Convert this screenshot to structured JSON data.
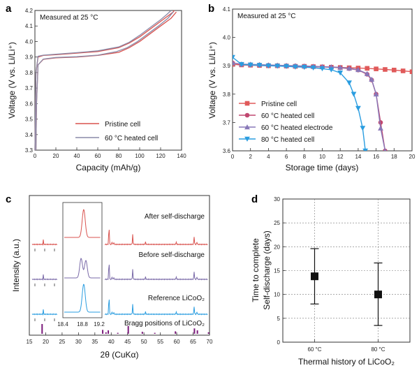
{
  "chart_data": [
    {
      "panel": "a",
      "type": "line",
      "annotation": "Measured at 25 °C",
      "xlabel": "Capacity (mAh/g)",
      "ylabel": "Voltage (V vs. Li/Li⁺)",
      "xlim": [
        0,
        140
      ],
      "ylim": [
        3.3,
        4.2
      ],
      "x_ticks": [
        "0",
        "20",
        "40",
        "60",
        "80",
        "100",
        "120",
        "140"
      ],
      "y_ticks": [
        "3.3",
        "3.4",
        "3.5",
        "3.6",
        "3.7",
        "3.8",
        "3.9",
        "4.0",
        "4.1",
        "4.2"
      ],
      "legend_position": "bottom-right",
      "series": [
        {
          "name": "Pristine cell",
          "color": "#d9534f",
          "charge": [
            [
              0,
              3.3
            ],
            [
              1,
              3.8
            ],
            [
              3,
              3.9
            ],
            [
              8,
              3.91
            ],
            [
              20,
              3.915
            ],
            [
              40,
              3.925
            ],
            [
              60,
              3.935
            ],
            [
              80,
              3.96
            ],
            [
              90,
              3.99
            ],
            [
              100,
              4.03
            ],
            [
              110,
              4.08
            ],
            [
              120,
              4.13
            ],
            [
              128,
              4.17
            ],
            [
              132,
              4.19
            ],
            [
              133,
              4.2
            ]
          ],
          "discharge": [
            [
              135,
              4.19
            ],
            [
              130,
              4.15
            ],
            [
              120,
              4.1
            ],
            [
              110,
              4.05
            ],
            [
              100,
              4.0
            ],
            [
              90,
              3.96
            ],
            [
              80,
              3.93
            ],
            [
              60,
              3.91
            ],
            [
              40,
              3.9
            ],
            [
              20,
              3.895
            ],
            [
              8,
              3.885
            ],
            [
              3,
              3.85
            ],
            [
              1.5,
              3.6
            ],
            [
              1,
              3.3
            ]
          ]
        },
        {
          "name": "60 °C heated cell",
          "color": "#8a8aa8",
          "charge": [
            [
              0,
              3.3
            ],
            [
              1,
              3.8
            ],
            [
              3,
              3.905
            ],
            [
              8,
              3.912
            ],
            [
              20,
              3.918
            ],
            [
              40,
              3.928
            ],
            [
              60,
              3.94
            ],
            [
              80,
              3.965
            ],
            [
              90,
              3.995
            ],
            [
              100,
              4.04
            ],
            [
              110,
              4.09
            ],
            [
              120,
              4.14
            ],
            [
              126,
              4.175
            ],
            [
              130,
              4.2
            ]
          ],
          "discharge": [
            [
              132,
              4.19
            ],
            [
              127,
              4.15
            ],
            [
              118,
              4.1
            ],
            [
              108,
              4.05
            ],
            [
              98,
              4.0
            ],
            [
              88,
              3.96
            ],
            [
              78,
              3.935
            ],
            [
              60,
              3.912
            ],
            [
              40,
              3.902
            ],
            [
              20,
              3.897
            ],
            [
              8,
              3.887
            ],
            [
              3,
              3.85
            ],
            [
              1.5,
              3.6
            ],
            [
              1,
              3.3
            ]
          ]
        }
      ]
    },
    {
      "panel": "b",
      "type": "line",
      "annotation": "Measured at 25 °C",
      "xlabel": "Storage time (days)",
      "ylabel": "Voltage (V vs. Li/Li⁺)",
      "xlim": [
        0,
        20
      ],
      "ylim": [
        3.6,
        4.1
      ],
      "x_ticks": [
        "0",
        "2",
        "4",
        "6",
        "8",
        "10",
        "12",
        "14",
        "16",
        "18",
        "20"
      ],
      "y_ticks": [
        "3.6",
        "3.7",
        "3.8",
        "3.9",
        "4.0",
        "4.1"
      ],
      "legend_position": "bottom-left",
      "series": [
        {
          "name": "Pristine cell",
          "color": "#e05a5a",
          "marker": "square",
          "x": [
            0,
            1,
            2,
            3,
            4,
            5,
            6,
            7,
            8,
            9,
            10,
            11,
            12,
            13,
            14,
            15,
            16,
            17,
            18,
            19,
            20
          ],
          "y": [
            3.905,
            3.903,
            3.902,
            3.901,
            3.9,
            3.9,
            3.899,
            3.898,
            3.898,
            3.897,
            3.896,
            3.895,
            3.894,
            3.893,
            3.892,
            3.891,
            3.889,
            3.887,
            3.885,
            3.882,
            3.879
          ]
        },
        {
          "name": "60 °C heated cell",
          "color": "#c04870",
          "marker": "circle",
          "x": [
            0,
            1,
            2,
            3,
            4,
            5,
            6,
            7,
            8,
            9,
            10,
            11,
            12,
            13,
            14,
            15,
            15.5,
            16,
            16.5,
            17
          ],
          "y": [
            3.91,
            3.905,
            3.904,
            3.903,
            3.902,
            3.901,
            3.9,
            3.899,
            3.898,
            3.897,
            3.896,
            3.895,
            3.893,
            3.89,
            3.885,
            3.87,
            3.85,
            3.8,
            3.7,
            3.6
          ]
        },
        {
          "name": "60 °C heated electrode",
          "color": "#8878b8",
          "marker": "triangle",
          "x": [
            0,
            1,
            2,
            3,
            4,
            5,
            6,
            7,
            8,
            9,
            10,
            11,
            12,
            13,
            14,
            15,
            15.5,
            16,
            16.5,
            17
          ],
          "y": [
            3.91,
            3.906,
            3.905,
            3.904,
            3.903,
            3.902,
            3.901,
            3.9,
            3.899,
            3.898,
            3.897,
            3.896,
            3.894,
            3.891,
            3.886,
            3.872,
            3.852,
            3.8,
            3.68,
            3.6
          ]
        },
        {
          "name": "80 °C heated cell",
          "color": "#2a9de0",
          "marker": "triangle-down",
          "x": [
            0,
            1,
            2,
            3,
            4,
            5,
            6,
            7,
            8,
            9,
            10,
            11,
            12,
            13,
            13.5,
            14,
            14.5,
            14.8
          ],
          "y": [
            3.93,
            3.905,
            3.903,
            3.902,
            3.9,
            3.899,
            3.898,
            3.896,
            3.895,
            3.893,
            3.89,
            3.886,
            3.875,
            3.84,
            3.8,
            3.75,
            3.68,
            3.6
          ]
        }
      ]
    },
    {
      "panel": "c",
      "type": "line",
      "xlabel": "2θ (CuKα)",
      "ylabel": "Intensity (a.u.)",
      "xlim": [
        15,
        70
      ],
      "x_ticks": [
        "15",
        "20",
        "25",
        "30",
        "35",
        "40",
        "45",
        "50",
        "55",
        "60",
        "65",
        "70"
      ],
      "inset_ticks": [
        "18.4",
        "18.8",
        "19.2"
      ],
      "series": [
        {
          "name": "After self-discharge",
          "color": "#d9534f",
          "peaks": [
            18.9,
            37.4,
            38.4,
            39.0,
            45.2,
            49.4,
            59.5,
            65.4,
            66.3
          ]
        },
        {
          "name": "Before self-discharge",
          "color": "#7a6aa8",
          "peaks": [
            18.9,
            37.4,
            38.4,
            39.0,
            45.2,
            49.4,
            59.5,
            65.4,
            66.3
          ]
        },
        {
          "name": "Reference LiCoO₂",
          "color": "#2a9de0",
          "peaks": [
            18.9,
            37.4,
            38.4,
            39.0,
            45.2,
            49.4,
            59.5,
            65.4,
            66.3
          ]
        },
        {
          "name": "Bragg positions of LiCoO₂",
          "color": "#7a1a7a",
          "positions": [
            18.9,
            37.4,
            38.4,
            39.1,
            42.0,
            45.2,
            49.5,
            53.3,
            59.6,
            65.4,
            66.3,
            69.7
          ],
          "heights": [
            1.0,
            0.4,
            0.15,
            0.35,
            0.1,
            0.8,
            0.2,
            0.1,
            0.25,
            0.55,
            0.35,
            0.15
          ]
        }
      ]
    },
    {
      "panel": "d",
      "type": "scatter",
      "xlabel": "Thermal history of LiCoO₂",
      "ylabel": "Time to complete Self-discharge (days)",
      "categories": [
        "60 °C",
        "80 °C"
      ],
      "values": [
        13.8,
        10.0
      ],
      "error_low": [
        8.0,
        3.5
      ],
      "error_high": [
        19.6,
        16.6
      ],
      "ylim": [
        0,
        30
      ],
      "y_ticks": [
        "0",
        "5",
        "10",
        "15",
        "20",
        "25",
        "30"
      ],
      "grid": true
    }
  ],
  "labels": {
    "a": "a",
    "b": "b",
    "c": "c",
    "d": "d"
  }
}
